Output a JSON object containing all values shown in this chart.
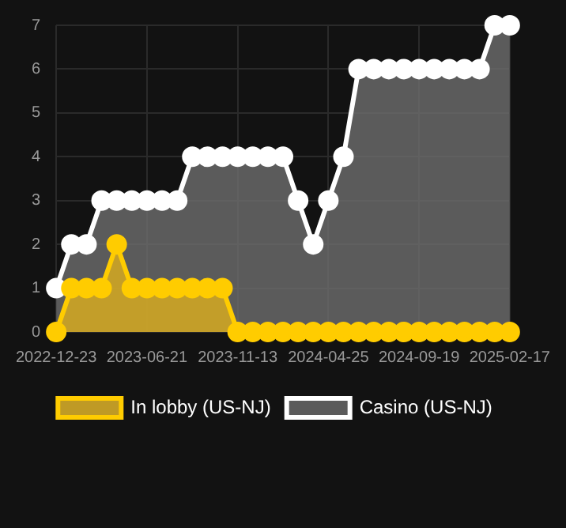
{
  "chart_data": {
    "type": "area",
    "categories": [
      "2022-12-23",
      null,
      null,
      null,
      null,
      null,
      "2023-06-21",
      null,
      null,
      null,
      null,
      null,
      "2023-11-13",
      null,
      null,
      null,
      null,
      null,
      "2024-04-25",
      null,
      null,
      null,
      null,
      null,
      "2024-09-19",
      null,
      null,
      null,
      null,
      null,
      "2025-02-17"
    ],
    "series": [
      {
        "name": "In lobby (US-NJ)",
        "color": "#ffcc00",
        "values": [
          0,
          1,
          1,
          1,
          2,
          1,
          1,
          1,
          1,
          1,
          1,
          1,
          0,
          0,
          0,
          0,
          0,
          0,
          0,
          0,
          0,
          0,
          0,
          0,
          0,
          0,
          0,
          0,
          0,
          0,
          0
        ]
      },
      {
        "name": "Casino (US-NJ)",
        "color": "#ffffff",
        "values": [
          1,
          2,
          2,
          3,
          3,
          3,
          3,
          3,
          3,
          4,
          4,
          4,
          4,
          4,
          4,
          4,
          3,
          2,
          3,
          4,
          6,
          6,
          6,
          6,
          6,
          6,
          6,
          6,
          6,
          7,
          7
        ]
      }
    ],
    "ylim": [
      0,
      7
    ],
    "yticks": [
      0,
      1,
      2,
      3,
      4,
      5,
      6,
      7
    ],
    "grid": true,
    "legend": "bottom",
    "marker": "circle"
  }
}
